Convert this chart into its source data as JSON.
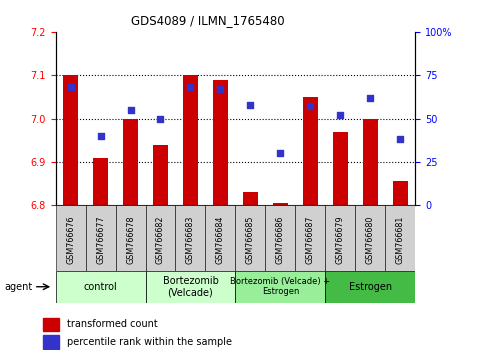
{
  "title": "GDS4089 / ILMN_1765480",
  "samples": [
    "GSM766676",
    "GSM766677",
    "GSM766678",
    "GSM766682",
    "GSM766683",
    "GSM766684",
    "GSM766685",
    "GSM766686",
    "GSM766687",
    "GSM766679",
    "GSM766680",
    "GSM766681"
  ],
  "bar_values": [
    7.1,
    6.91,
    7.0,
    6.94,
    7.1,
    7.09,
    6.83,
    6.805,
    7.05,
    6.97,
    7.0,
    6.855
  ],
  "bar_bottom": 6.8,
  "dot_values_pct": [
    68,
    40,
    55,
    50,
    68,
    67,
    58,
    30,
    57,
    52,
    62,
    38
  ],
  "ylim_left": [
    6.8,
    7.2
  ],
  "ylim_right": [
    0,
    100
  ],
  "yticks_left": [
    6.8,
    6.9,
    7.0,
    7.1,
    7.2
  ],
  "yticks_right": [
    0,
    25,
    50,
    75,
    100
  ],
  "ytick_labels_right": [
    "0",
    "25",
    "50",
    "75",
    "100%"
  ],
  "hlines": [
    6.9,
    7.0,
    7.1
  ],
  "bar_color": "#cc0000",
  "dot_color": "#3333cc",
  "group_spans": [
    [
      0,
      2,
      "control",
      "#ccffcc"
    ],
    [
      3,
      5,
      "Bortezomib\n(Velcade)",
      "#ccffcc"
    ],
    [
      6,
      8,
      "Bortezomib (Velcade) +\nEstrogen",
      "#99ee99"
    ],
    [
      9,
      11,
      "Estrogen",
      "#44bb44"
    ]
  ],
  "agent_label": "agent",
  "legend_bar_label": "transformed count",
  "legend_dot_label": "percentile rank within the sample",
  "bar_width": 0.5,
  "sample_cell_color": "#d0d0d0",
  "title_fontsize": 8.5
}
